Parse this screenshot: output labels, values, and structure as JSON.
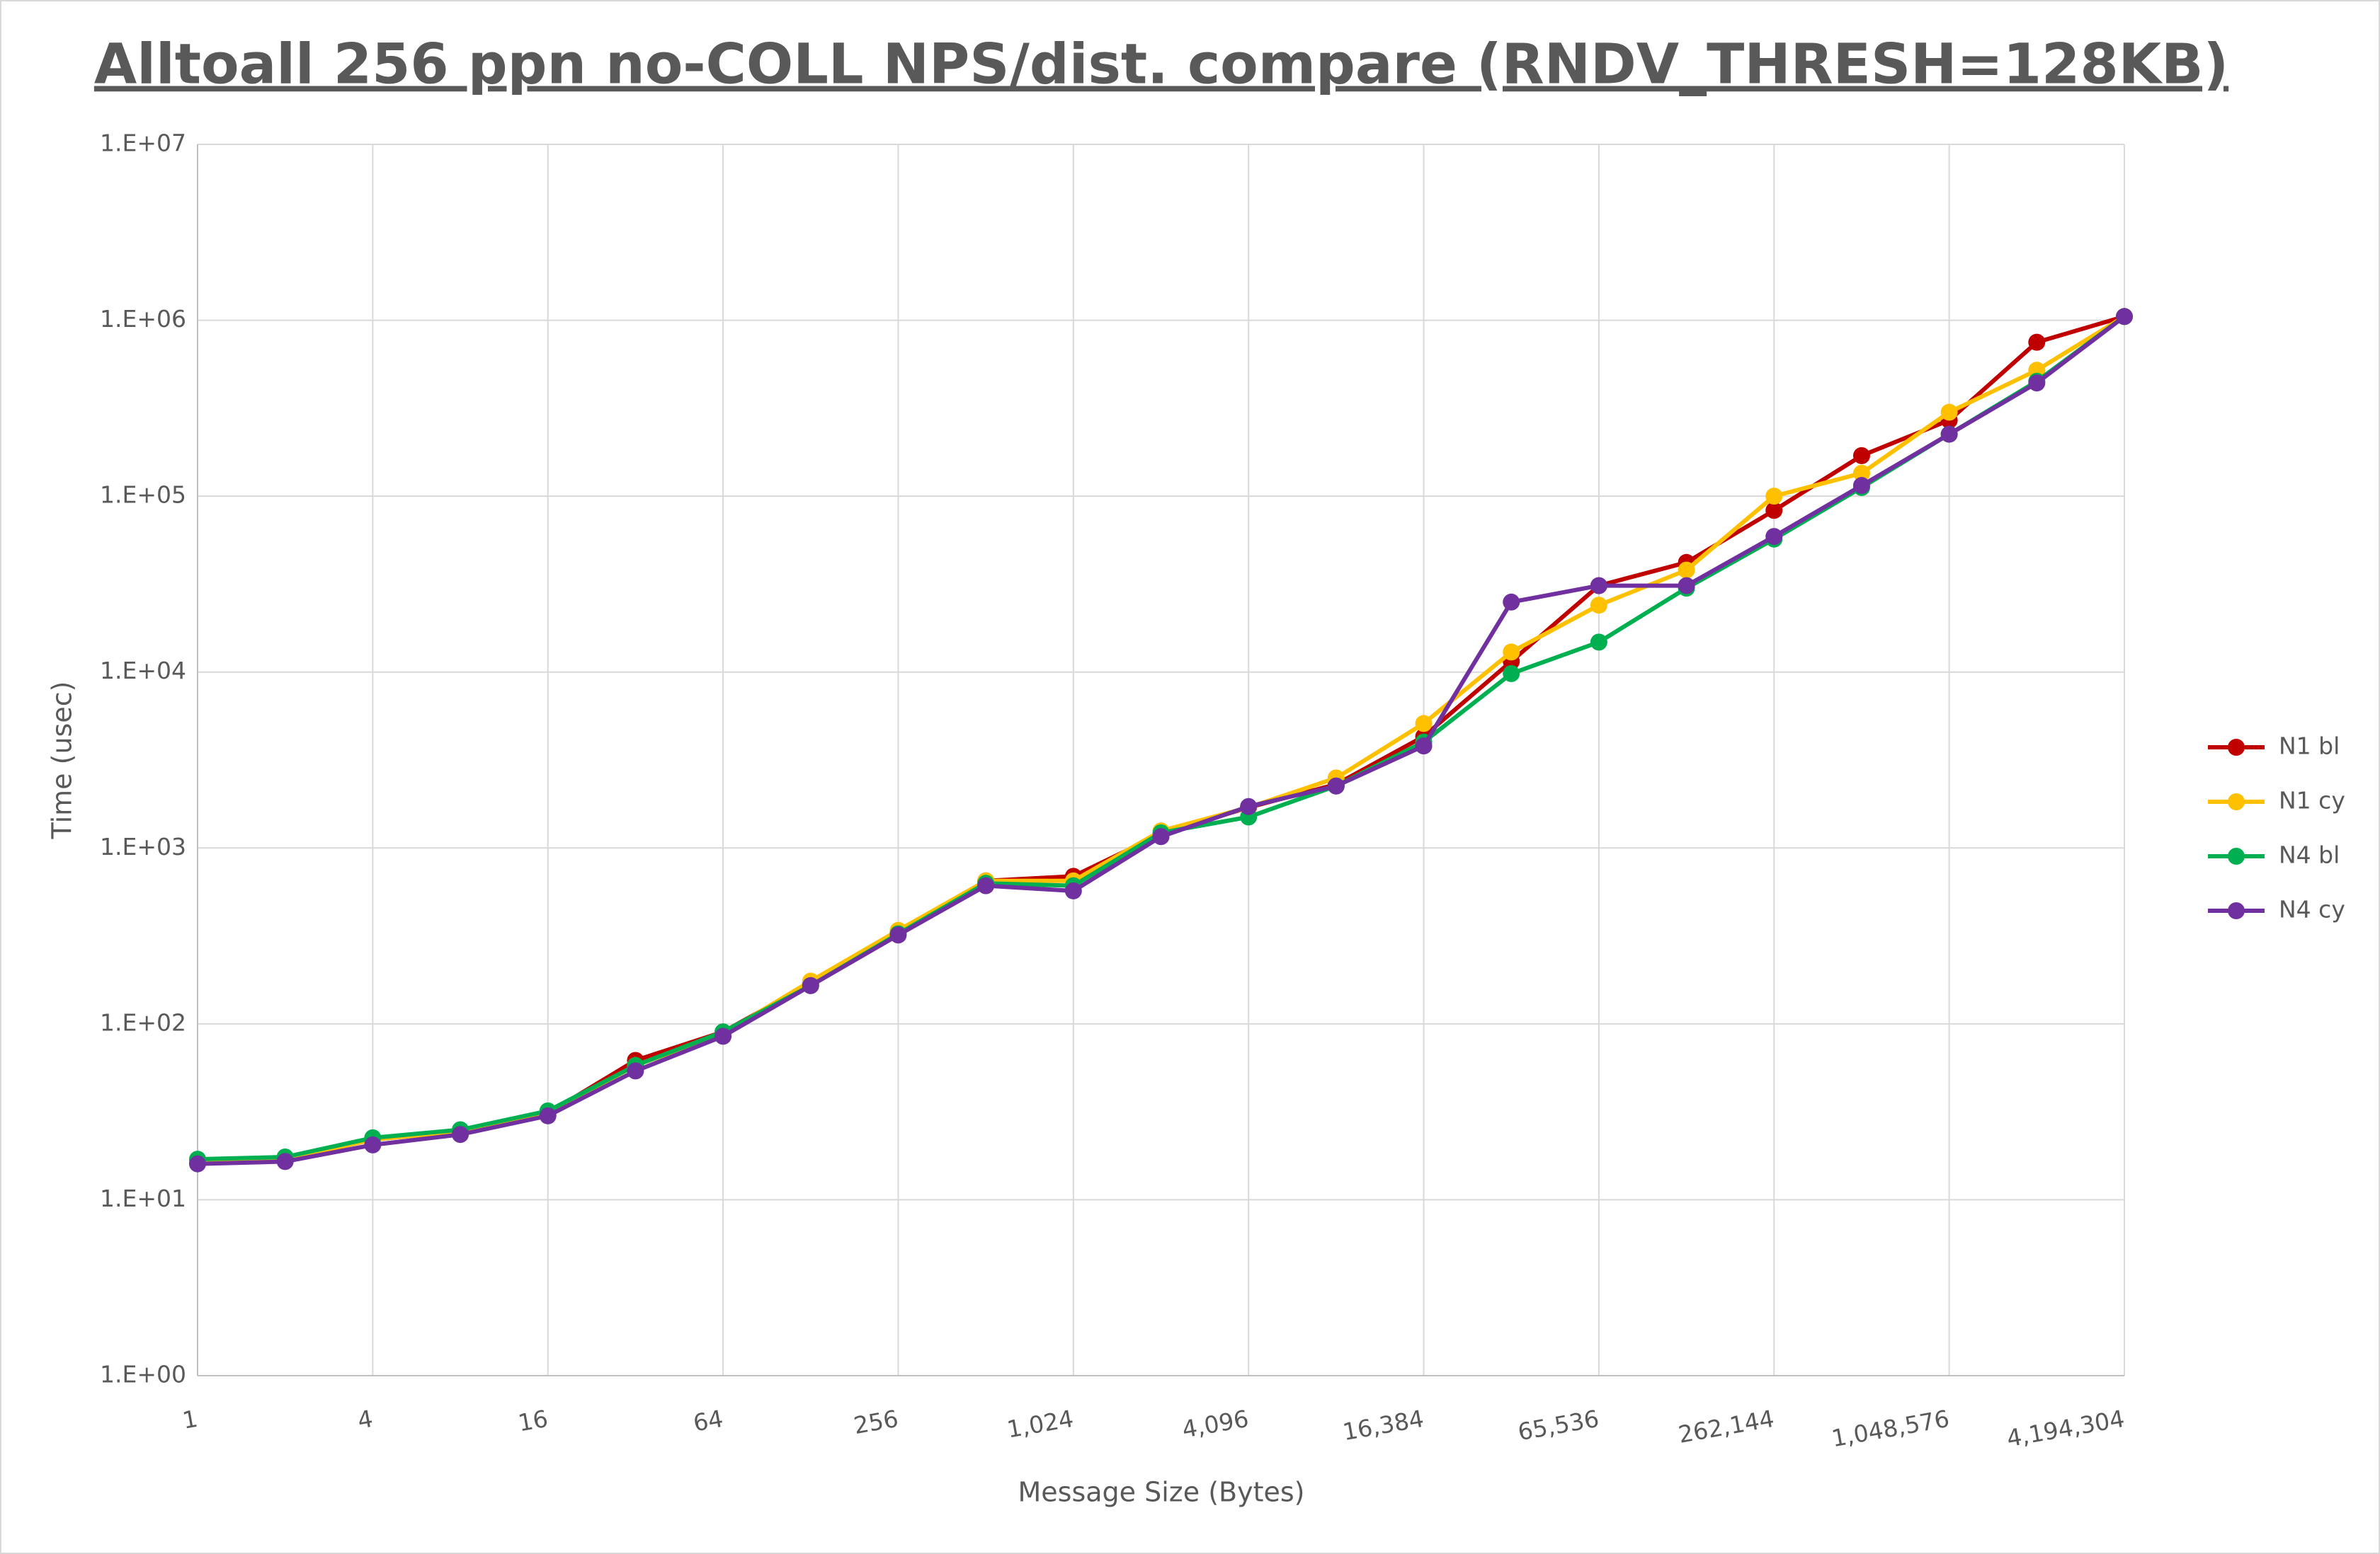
{
  "chart_data": {
    "type": "line",
    "title": "Alltoall 256 ppn no-COLL NPS/dist. compare (RNDV_THRESH=128KB)",
    "x_label": "Message Size (Bytes)",
    "y_label": "Time (usec)",
    "x": [
      1,
      2,
      4,
      8,
      16,
      32,
      64,
      128,
      256,
      512,
      1024,
      2048,
      4096,
      8192,
      16384,
      32768,
      65536,
      131072,
      262144,
      524288,
      1048576,
      2097152,
      4194304
    ],
    "x_log_base": 2,
    "y_log_base": 10,
    "xlim": [
      1,
      4194304
    ],
    "xticks": [
      1,
      4,
      16,
      64,
      256,
      {
        "value": 1024,
        "label": "1,024"
      },
      {
        "value": 4096,
        "label": "4,096"
      },
      {
        "value": 16384,
        "label": "16,384"
      },
      {
        "value": 65536,
        "label": "65,536"
      },
      {
        "value": 262144,
        "label": "262,144"
      },
      {
        "value": 1048576,
        "label": "1,048,576"
      },
      {
        "value": 4194304,
        "label": "4,194,304"
      }
    ],
    "ylim": [
      1,
      10000000
    ],
    "yticks": [
      {
        "value": 1,
        "label": "1.E+00"
      },
      {
        "value": 10,
        "label": "1.E+01"
      },
      {
        "value": 100,
        "label": "1.E+02"
      },
      {
        "value": 1000,
        "label": "1.E+03"
      },
      {
        "value": 10000,
        "label": "1.E+04"
      },
      {
        "value": 100000,
        "label": "1.E+05"
      },
      {
        "value": 1000000,
        "label": "1.E+06"
      },
      {
        "value": 10000000,
        "label": "1.E+07"
      }
    ],
    "grid": true,
    "legend": "right",
    "series": [
      {
        "name": "N1 bl",
        "color": "#c00000",
        "values": [
          16.5,
          17,
          22,
          24.5,
          31,
          62,
          90,
          170,
          335,
          650,
          690,
          1200,
          1700,
          2300,
          4300,
          11500,
          31000,
          42000,
          83000,
          170000,
          270000,
          750000,
          1050000
        ]
      },
      {
        "name": "N1 cy",
        "color": "#ffc000",
        "values": [
          16.5,
          17,
          22,
          24.5,
          31,
          58,
          88,
          175,
          340,
          650,
          650,
          1250,
          1700,
          2500,
          5100,
          13000,
          24000,
          38000,
          100000,
          135000,
          300000,
          520000,
          1050000
        ]
      },
      {
        "name": "N4 bl",
        "color": "#00b050",
        "values": [
          17,
          17.5,
          22.5,
          25,
          32,
          58,
          90,
          165,
          325,
          630,
          610,
          1220,
          1500,
          2250,
          4000,
          9800,
          14800,
          30000,
          57000,
          112000,
          225000,
          450000,
          1050000
        ]
      },
      {
        "name": "N4 cy",
        "color": "#7030a0",
        "values": [
          16,
          16.5,
          20.5,
          23.5,
          30,
          54,
          85,
          165,
          320,
          610,
          570,
          1160,
          1720,
          2250,
          3800,
          25000,
          31000,
          31000,
          59000,
          115000,
          225000,
          440000,
          1050000
        ]
      }
    ]
  }
}
